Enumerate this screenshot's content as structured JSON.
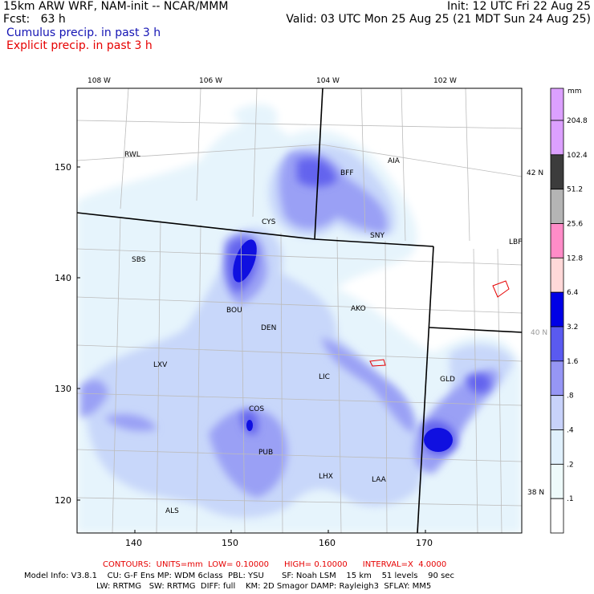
{
  "header": {
    "line1_left": "15km ARW WRF, NAM-init -- NCAR/MMM",
    "line1_right": "Init: 12 UTC Fri 22 Aug 25",
    "line2_left": "Fcst:   63 h",
    "line2_right": "Valid: 03 UTC Mon 25 Aug 25 (21 MDT Sun 24 Aug 25)",
    "line3": "Cumulus precip. in past 3 h",
    "line4": "Explicit precip. in past 3 h"
  },
  "longitude_labels": [
    "108 W",
    "106 W",
    "104 W",
    "102 W"
  ],
  "latitude_labels": [
    "42 N",
    "40 N",
    "38 N"
  ],
  "x_ticks": [
    "140",
    "150",
    "160",
    "170"
  ],
  "y_ticks": [
    "150",
    "140",
    "130",
    "120"
  ],
  "stations": [
    {
      "id": "RWL"
    },
    {
      "id": "BFF"
    },
    {
      "id": "AIA"
    },
    {
      "id": "CYS"
    },
    {
      "id": "SNY"
    },
    {
      "id": "LBF"
    },
    {
      "id": "SBS"
    },
    {
      "id": "BOU"
    },
    {
      "id": "AKO"
    },
    {
      "id": "DEN"
    },
    {
      "id": "LXV"
    },
    {
      "id": "LIC"
    },
    {
      "id": "GLD"
    },
    {
      "id": "COS"
    },
    {
      "id": "PUB"
    },
    {
      "id": "LHX"
    },
    {
      "id": "LAA"
    },
    {
      "id": "ALS"
    }
  ],
  "colorbar": {
    "unit": "mm",
    "levels": [
      {
        "label": "204.8",
        "color": "#dca0ff"
      },
      {
        "label": "102.4",
        "color": "#3c3c3c"
      },
      {
        "label": "51.2",
        "color": "#b4b4b4"
      },
      {
        "label": "25.6",
        "color": "#ff8cc8"
      },
      {
        "label": "12.8",
        "color": "#ffd8d8"
      },
      {
        "label": "6.4",
        "color": "#0000e6"
      },
      {
        "label": "3.2",
        "color": "#5a5af0"
      },
      {
        "label": "1.6",
        "color": "#9696f5"
      },
      {
        "label": ".8",
        "color": "#c8d2fa"
      },
      {
        "label": ".4",
        "color": "#e0f0fc"
      },
      {
        "label": ".2",
        "color": "#eefafa"
      },
      {
        "label": ".1",
        "color": "#ffffff"
      }
    ],
    "top_color": "#dca0ff"
  },
  "footer": {
    "contours": "CONTOURS:  UNITS=mm  LOW= 0.10000      HIGH= 0.10000      INTERVAL=X  4.0000",
    "model1": "Model Info: V3.8.1    CU: G-F Ens MP: WDM 6class  PBL: YSU       SF: Noah LSM    15 km    51 levels    90 sec",
    "model2": "LW: RRTMG   SW: RRTMG  DIFF: full    KM: 2D Smagor DAMP: Rayleigh3  SFLAY: MM5"
  },
  "colors": {
    "very_light": "#e6f4fc",
    "light": "#c8d7fa",
    "mid": "#9aa0f5",
    "strong": "#6464ee",
    "intense": "#1010e0",
    "explicit_contour": "#e60000",
    "header_blue": "#1414b4"
  }
}
